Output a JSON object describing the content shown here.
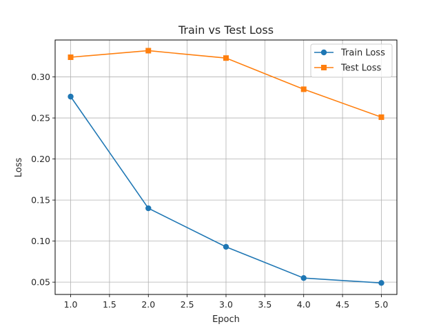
{
  "chart_data": {
    "type": "line",
    "title": "Train vs Test Loss",
    "xlabel": "Epoch",
    "ylabel": "Loss",
    "xlim": [
      0.8,
      5.2
    ],
    "ylim": [
      0.035,
      0.345
    ],
    "xticks": [
      1.0,
      1.5,
      2.0,
      2.5,
      3.0,
      3.5,
      4.0,
      4.5,
      5.0
    ],
    "xtick_labels": [
      "1.0",
      "1.5",
      "2.0",
      "2.5",
      "3.0",
      "3.5",
      "4.0",
      "4.5",
      "5.0"
    ],
    "yticks": [
      0.05,
      0.1,
      0.15,
      0.2,
      0.25,
      0.3
    ],
    "ytick_labels": [
      "0.05",
      "0.10",
      "0.15",
      "0.20",
      "0.25",
      "0.30"
    ],
    "grid": true,
    "legend_position": "top-right",
    "x": [
      1,
      2,
      3,
      4,
      5
    ],
    "series": [
      {
        "name": "Train Loss",
        "values": [
          0.276,
          0.14,
          0.093,
          0.055,
          0.049
        ],
        "color": "#1f77b4",
        "marker": "circle"
      },
      {
        "name": "Test Loss",
        "values": [
          0.324,
          0.332,
          0.323,
          0.285,
          0.251
        ],
        "color": "#ff7f0e",
        "marker": "square"
      }
    ]
  }
}
